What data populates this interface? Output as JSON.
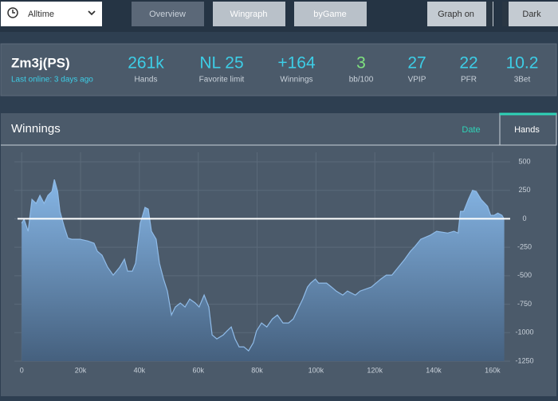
{
  "header": {
    "period": "Alltime",
    "tabs": [
      "Overview",
      "Wingraph",
      "byGame"
    ],
    "toggles": [
      "Graph on",
      "Dark"
    ]
  },
  "player": {
    "name": "Zm3j(PS)",
    "status": "Last online: 3 days ago"
  },
  "stats": [
    {
      "value": "261k",
      "label": "Hands",
      "color": "#3dcde6"
    },
    {
      "value": "NL 25",
      "label": "Favorite limit",
      "color": "#3dcde6"
    },
    {
      "value": "+164",
      "label": "Winnings",
      "color": "#3dcde6"
    },
    {
      "value": "3",
      "label": "bb/100",
      "color": "#7fe27f"
    },
    {
      "value": "27",
      "label": "VPIP",
      "color": "#3dcde6"
    },
    {
      "value": "22",
      "label": "PFR",
      "color": "#3dcde6"
    },
    {
      "value": "10.2",
      "label": "3Bet",
      "color": "#3dcde6"
    }
  ],
  "chart_data": {
    "type": "area",
    "title": "Winnings",
    "tabs": [
      "Date",
      "Hands"
    ],
    "x": [
      0,
      800,
      2200,
      3500,
      4900,
      6200,
      7600,
      8900,
      10300,
      11100,
      12200,
      13000,
      14500,
      15700,
      17000,
      19800,
      22500,
      24600,
      25700,
      27300,
      29200,
      31100,
      33300,
      34900,
      36000,
      37600,
      38700,
      40300,
      41900,
      43000,
      44100,
      45700,
      46800,
      48200,
      49500,
      50900,
      52200,
      53900,
      55500,
      57100,
      59000,
      60300,
      62000,
      63600,
      64700,
      66300,
      68500,
      69800,
      71200,
      72500,
      73900,
      75500,
      77100,
      78700,
      79800,
      81500,
      83300,
      85200,
      86900,
      88800,
      90700,
      92300,
      94200,
      95500,
      97100,
      98200,
      99800,
      100900,
      103600,
      105300,
      106900,
      109100,
      110700,
      113400,
      115000,
      118800,
      122000,
      123900,
      125800,
      128000,
      130200,
      132100,
      133400,
      135600,
      138800,
      141000,
      144800,
      146900,
      148300,
      149100,
      150200,
      151800,
      153200,
      154500,
      156100,
      158300,
      159400,
      160500,
      161800,
      163200,
      164000
    ],
    "values": [
      -40,
      -5,
      -110,
      170,
      135,
      205,
      135,
      205,
      240,
      345,
      240,
      65,
      -75,
      -170,
      -180,
      -180,
      -195,
      -215,
      -285,
      -320,
      -425,
      -495,
      -425,
      -355,
      -460,
      -460,
      -390,
      -40,
      100,
      85,
      -110,
      -180,
      -390,
      -530,
      -635,
      -845,
      -775,
      -740,
      -775,
      -705,
      -740,
      -775,
      -670,
      -775,
      -1020,
      -1055,
      -1020,
      -985,
      -950,
      -1055,
      -1125,
      -1125,
      -1160,
      -1090,
      -985,
      -915,
      -950,
      -880,
      -845,
      -915,
      -915,
      -880,
      -775,
      -705,
      -600,
      -565,
      -530,
      -565,
      -565,
      -600,
      -635,
      -670,
      -635,
      -670,
      -635,
      -600,
      -530,
      -495,
      -495,
      -425,
      -355,
      -285,
      -250,
      -180,
      -145,
      -110,
      -125,
      -110,
      -125,
      65,
      65,
      170,
      250,
      240,
      170,
      110,
      30,
      30,
      50,
      30,
      -5
    ],
    "xlim": [
      -2500,
      166000
    ],
    "ylim": [
      -1250,
      500
    ],
    "xticks": [
      0,
      {
        "value": 20000,
        "label": "20k"
      },
      {
        "value": 40000,
        "label": "40k"
      },
      {
        "value": 60000,
        "label": "60k"
      },
      {
        "value": 80000,
        "label": "80k"
      },
      {
        "value": 100000,
        "label": "100k"
      },
      {
        "value": 120000,
        "label": "120k"
      },
      {
        "value": 140000,
        "label": "140k"
      },
      {
        "value": 160000,
        "label": "160k"
      }
    ],
    "yticks": [
      500,
      250,
      0,
      -250,
      -500,
      -750,
      -1000,
      -1250
    ],
    "grid": true,
    "color": "#8fbbe8"
  }
}
